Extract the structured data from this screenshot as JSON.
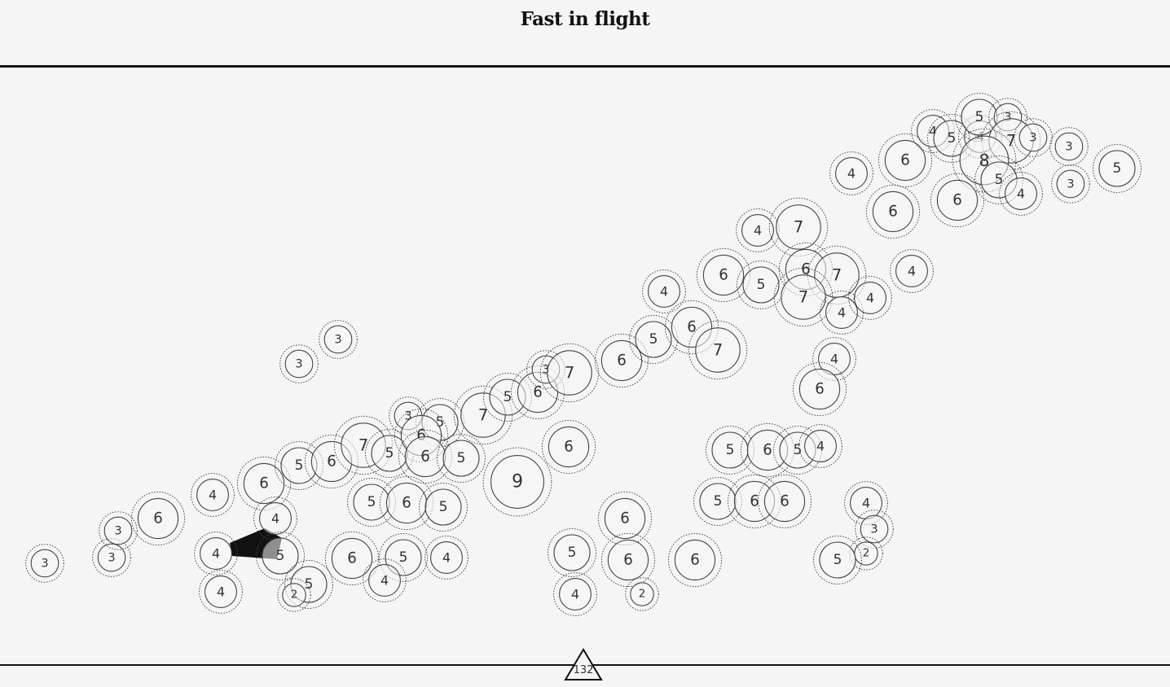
{
  "title": "Fast in flight",
  "marker": {
    "label": "132",
    "icon": "triangle-marker-icon"
  },
  "colors": {
    "background": "#f6f5f6",
    "ink": "#111111",
    "node_stroke": "#444444",
    "tail_fill": "#111111"
  },
  "nodes": [
    {
      "level": 3
    },
    {
      "level": 3
    },
    {
      "level": 3
    },
    {
      "level": 6
    },
    {
      "level": 4
    },
    {
      "level": 6
    },
    {
      "level": 4
    },
    {
      "level": 4
    },
    {
      "level": 5
    },
    {
      "level": 4
    },
    {
      "level": 5
    },
    {
      "level": 2
    },
    {
      "level": 3
    },
    {
      "level": 3
    },
    {
      "level": 5
    },
    {
      "level": 6
    },
    {
      "level": 7
    },
    {
      "level": 5
    },
    {
      "level": 3
    },
    {
      "level": 5
    },
    {
      "level": 6
    },
    {
      "level": 6
    },
    {
      "level": 5
    },
    {
      "level": 7
    },
    {
      "level": 5
    },
    {
      "level": 6
    },
    {
      "level": 3
    },
    {
      "level": 7
    },
    {
      "level": 5
    },
    {
      "level": 6
    },
    {
      "level": 5
    },
    {
      "level": 6
    },
    {
      "level": 5
    },
    {
      "level": 4
    },
    {
      "level": 4
    },
    {
      "level": 9
    },
    {
      "level": 6
    },
    {
      "level": 5
    },
    {
      "level": 4
    },
    {
      "level": 6
    },
    {
      "level": 6
    },
    {
      "level": 2
    },
    {
      "level": 6
    },
    {
      "level": 6
    },
    {
      "level": 4
    },
    {
      "level": 5
    },
    {
      "level": 6
    },
    {
      "level": 7
    },
    {
      "level": 6
    },
    {
      "level": 5
    },
    {
      "level": 4
    },
    {
      "level": 7
    },
    {
      "level": 6
    },
    {
      "level": 7
    },
    {
      "level": 7
    },
    {
      "level": 4
    },
    {
      "level": 4
    },
    {
      "level": 4
    },
    {
      "level": 4
    },
    {
      "level": 6
    },
    {
      "level": 5
    },
    {
      "level": 6
    },
    {
      "level": 5
    },
    {
      "level": 4
    },
    {
      "level": 5
    },
    {
      "level": 6
    },
    {
      "level": 6
    },
    {
      "level": 4
    },
    {
      "level": 3
    },
    {
      "level": 2
    },
    {
      "level": 5
    },
    {
      "level": 4
    },
    {
      "level": 6
    },
    {
      "level": 6
    },
    {
      "level": 4
    },
    {
      "level": 5
    },
    {
      "level": 4
    },
    {
      "level": 5
    },
    {
      "level": 3
    },
    {
      "level": 7
    },
    {
      "level": 3
    },
    {
      "level": 8
    },
    {
      "level": 5
    },
    {
      "level": 4
    },
    {
      "level": 6
    },
    {
      "level": 3
    },
    {
      "level": 3
    },
    {
      "level": 5
    }
  ]
}
